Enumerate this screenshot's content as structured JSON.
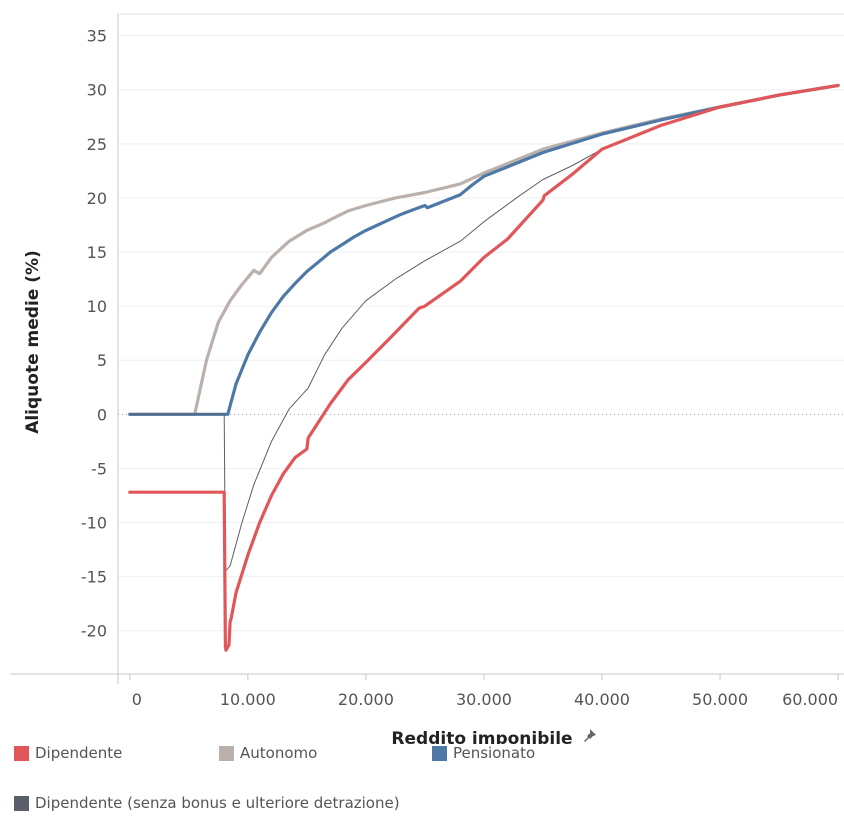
{
  "chart_data": {
    "type": "line",
    "xlabel": "Reddito imponibile",
    "ylabel": "Aliquote medie (%)",
    "xlim": [
      -1000,
      60500
    ],
    "ylim": [
      -24,
      37
    ],
    "x_ticks": [
      0,
      10000,
      20000,
      30000,
      40000,
      50000,
      60000
    ],
    "x_tick_labels": [
      "0",
      "10.000",
      "20.000",
      "30.000",
      "40.000",
      "50.000",
      "60.000"
    ],
    "y_ticks": [
      -20,
      -15,
      -10,
      -5,
      0,
      5,
      10,
      15,
      20,
      25,
      30,
      35
    ],
    "y_tick_labels": [
      "-20",
      "-15",
      "-10",
      "-5",
      "0",
      "5",
      "10",
      "15",
      "20",
      "25",
      "30",
      "35"
    ],
    "grid": true,
    "legend_position": "bottom",
    "pin_icon": "pin-icon",
    "series": [
      {
        "name": "Autonomo",
        "color": "#bab0ac",
        "x": [
          0,
          5500,
          6500,
          7500,
          8500,
          9500,
          10500,
          11000,
          12000,
          13500,
          15000,
          16500,
          17000,
          18500,
          20000,
          22500,
          25000,
          28000,
          30000,
          35000,
          40000,
          45000,
          50000,
          55000,
          60000
        ],
        "values": [
          0,
          0,
          5,
          8.5,
          10.5,
          12,
          13.3,
          13,
          14.5,
          16,
          17,
          17.7,
          18,
          18.8,
          19.3,
          20,
          20.5,
          21.3,
          22.3,
          24.5,
          26,
          27.3,
          28.4,
          29.5,
          30.4
        ]
      },
      {
        "name": "Pensionato",
        "color": "#4e79a7",
        "x": [
          0,
          8300,
          9000,
          10000,
          11000,
          12000,
          13000,
          14000,
          15000,
          16000,
          17000,
          18000,
          19000,
          20000,
          21000,
          22000,
          23000,
          24000,
          25000,
          25200,
          28000,
          29000,
          30000,
          35000,
          40000,
          45000,
          50000,
          55000,
          60000
        ],
        "values": [
          0,
          0,
          2.8,
          5.5,
          7.6,
          9.4,
          10.9,
          12.1,
          13.2,
          14.1,
          15,
          15.7,
          16.4,
          17,
          17.5,
          18,
          18.5,
          18.9,
          19.3,
          19.1,
          20.3,
          21.2,
          22,
          24.2,
          25.9,
          27.2,
          28.4,
          29.5,
          30.4
        ]
      },
      {
        "name": "Dipendente (senza bonus e ulteriore detrazione)",
        "color": "#5b5f6b",
        "x": [
          0,
          8000,
          8100,
          8500,
          9500,
          10500,
          12000,
          13500,
          15000,
          15050,
          16500,
          18000,
          20000,
          22500,
          25000,
          28000,
          30000,
          33000,
          35000,
          37500,
          40000,
          45000,
          50000,
          55000,
          60000
        ],
        "values": [
          0,
          0,
          -14.5,
          -14,
          -10,
          -6.5,
          -2.5,
          0.5,
          2.3,
          2.3,
          5.5,
          8,
          10.5,
          12.5,
          14.2,
          16,
          17.8,
          20.2,
          21.7,
          23,
          24.5,
          26.7,
          28.4,
          29.5,
          30.4
        ]
      },
      {
        "name": "Dipendente",
        "color": "#e15759",
        "x": [
          0,
          8000,
          8100,
          8150,
          8400,
          8500,
          8600,
          9000,
          10000,
          11000,
          12000,
          13000,
          14000,
          15000,
          15100,
          17000,
          18500,
          20000,
          22000,
          24500,
          25000,
          28000,
          30000,
          32000,
          35000,
          35100,
          37500,
          40000,
          45000,
          50000,
          55000,
          60000
        ],
        "values": [
          -7.2,
          -7.2,
          -21.5,
          -21.8,
          -21.3,
          -19.2,
          -18.8,
          -16.5,
          -13,
          -10,
          -7.5,
          -5.5,
          -4,
          -3.2,
          -2.2,
          1,
          3.2,
          4.8,
          7,
          9.8,
          10,
          12.3,
          14.5,
          16.2,
          19.8,
          20.2,
          22.2,
          24.5,
          26.7,
          28.4,
          29.5,
          30.4
        ]
      }
    ],
    "legend_order": [
      3,
      0,
      1,
      2
    ]
  }
}
